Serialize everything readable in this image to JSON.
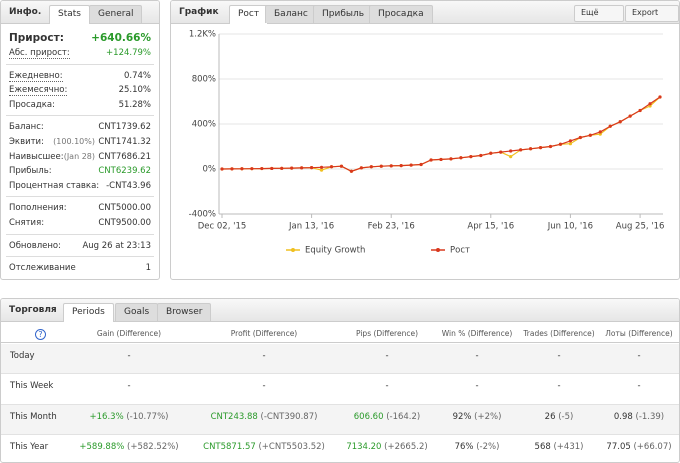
{
  "stats": {
    "title": "Инфо.",
    "tabs": [
      "Stats",
      "General"
    ],
    "groups": [
      [
        {
          "label": "Прирост:",
          "value": "+640.66%"
        },
        {
          "label": "Абс. прирост:",
          "value": "+124.79%"
        }
      ],
      [
        {
          "label": "Ежедневно:",
          "value": "0.74%"
        },
        {
          "label": "Ежемесячно:",
          "value": "25.10%"
        },
        {
          "label": "Просадка:",
          "value": "51.28%"
        }
      ],
      [
        {
          "label": "Баланс:",
          "value": "CNT1739.62"
        },
        {
          "label": "Эквити:",
          "note": "(100.10%)",
          "value": "CNT1741.32"
        },
        {
          "label": "Наивысшее:",
          "note": "(Jan 28)",
          "value": "CNT7686.21"
        },
        {
          "label": "Прибыль:",
          "value": "CNT6239.62"
        },
        {
          "label": "Процентная ставка:",
          "value": "-CNT43.96"
        }
      ],
      [
        {
          "label": "Пополнения:",
          "value": "CNT5000.00"
        },
        {
          "label": "Снятия:",
          "value": "CNT9500.00"
        }
      ],
      [
        {
          "label": "Обновлено:",
          "value": "Aug 26 at 23:13"
        }
      ],
      [
        {
          "label": "Отслеживание",
          "value": "1"
        }
      ]
    ]
  },
  "chart_panel": {
    "title": "График",
    "tabs": [
      "Рост",
      "Баланс",
      "Прибыль",
      "Просадка"
    ],
    "buttons": [
      "Ещё",
      "Export"
    ]
  },
  "chart_data": {
    "type": "line",
    "categories": [
      "Dec 02, '15",
      null,
      null,
      null,
      null,
      null,
      null,
      null,
      null,
      "Jan 13, '16",
      null,
      null,
      null,
      null,
      null,
      null,
      null,
      "Feb 23, '16",
      null,
      null,
      null,
      null,
      null,
      null,
      null,
      null,
      null,
      "Apr 15, '16",
      null,
      null,
      null,
      null,
      null,
      null,
      null,
      "Jun 10, '16",
      null,
      null,
      null,
      null,
      null,
      null,
      "Aug 25, '16",
      null,
      null
    ],
    "series": [
      {
        "name": "Equity Growth",
        "color": "#f0c020",
        "values": [
          0,
          1,
          2,
          3,
          4,
          5,
          6,
          8,
          10,
          12,
          -10,
          20,
          25,
          -20,
          10,
          20,
          25,
          28,
          30,
          35,
          40,
          80,
          85,
          90,
          100,
          110,
          120,
          140,
          150,
          110,
          170,
          180,
          190,
          200,
          220,
          225,
          280,
          300,
          310,
          380,
          420,
          470,
          520,
          560,
          640
        ]
      },
      {
        "name": "Рост",
        "color": "#d9381e",
        "values": [
          0,
          1,
          2,
          3,
          4,
          5,
          6,
          8,
          10,
          12,
          15,
          20,
          25,
          -20,
          10,
          20,
          25,
          28,
          30,
          35,
          40,
          80,
          85,
          90,
          100,
          110,
          120,
          140,
          150,
          160,
          170,
          180,
          190,
          200,
          220,
          250,
          280,
          300,
          330,
          380,
          420,
          470,
          520,
          580,
          640
        ]
      }
    ],
    "ylim": [
      -400,
      1200
    ],
    "yticks": [
      {
        "value": 1200,
        "label": "1.2K%"
      },
      {
        "value": 800,
        "label": "800%"
      },
      {
        "value": 400,
        "label": "400%"
      },
      {
        "value": 0,
        "label": "0%"
      },
      {
        "value": -400,
        "label": "-400%"
      }
    ],
    "grid": true
  },
  "trading": {
    "title": "Торговля",
    "tabs": [
      "Periods",
      "Goals",
      "Browser"
    ],
    "columns": [
      "Gain (Difference)",
      "Profit (Difference)",
      "Pips (Difference)",
      "Win % (Difference)",
      "Trades (Difference)",
      "Лоты (Difference)"
    ],
    "rows": [
      {
        "label": "Today",
        "cells": [
          {
            "value": "-"
          },
          {
            "value": "-"
          },
          {
            "value": "-"
          },
          {
            "value": "-"
          },
          {
            "value": "-"
          },
          {
            "value": "-"
          }
        ]
      },
      {
        "label": "This Week",
        "cells": [
          {
            "value": "-"
          },
          {
            "value": "-"
          },
          {
            "value": "-"
          },
          {
            "value": "-"
          },
          {
            "value": "-"
          },
          {
            "value": "-"
          }
        ]
      },
      {
        "label": "This Month",
        "cells": [
          {
            "value": "+16.3%",
            "diff": "(-10.77%)"
          },
          {
            "value": "CNT243.88",
            "diff": "(-CNT390.87)"
          },
          {
            "value": "606.60",
            "diff": "(-164.2)"
          },
          {
            "value": "92%",
            "diff": "(+2%)"
          },
          {
            "value": "26",
            "diff": "(-5)"
          },
          {
            "value": "0.98",
            "diff": "(-1.39)"
          }
        ]
      },
      {
        "label": "This Year",
        "cells": [
          {
            "value": "+589.88%",
            "diff": "(+582.52%)"
          },
          {
            "value": "CNT5871.57",
            "diff": "(+CNT5503.52)"
          },
          {
            "value": "7134.20",
            "diff": "(+2665.2)"
          },
          {
            "value": "76%",
            "diff": "(-2%)"
          },
          {
            "value": "568",
            "diff": "(+431)"
          },
          {
            "value": "77.05",
            "diff": "(+66.07)"
          }
        ]
      }
    ]
  }
}
